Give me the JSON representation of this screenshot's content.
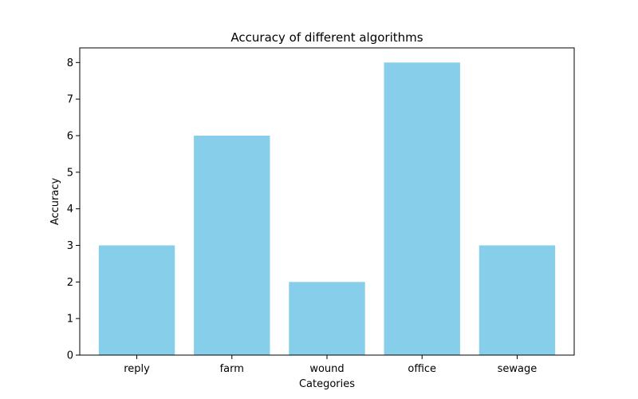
{
  "chart_data": {
    "type": "bar",
    "title": "Accuracy of different algorithms",
    "xlabel": "Categories",
    "ylabel": "Accuracy",
    "categories": [
      "reply",
      "farm",
      "wound",
      "office",
      "sewage"
    ],
    "values": [
      3,
      6,
      2,
      8,
      3
    ],
    "ylim": [
      0,
      8.4
    ],
    "yticks": [
      0,
      1,
      2,
      3,
      4,
      5,
      6,
      7,
      8
    ],
    "grid": false,
    "bar_color": "#87ceeb"
  }
}
